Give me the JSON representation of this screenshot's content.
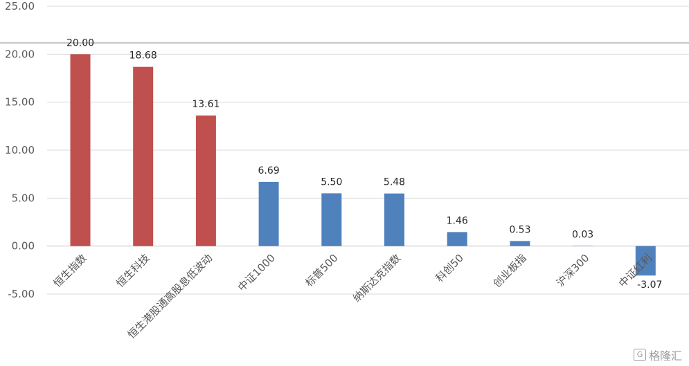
{
  "chart_data": {
    "type": "bar",
    "categories": [
      "恒生指数",
      "恒生科技",
      "恒生港股通高股息低波动",
      "中证1000",
      "标普500",
      "纳斯达克指数",
      "科创50",
      "创业板指",
      "沪深300",
      "中证红利"
    ],
    "values": [
      20.0,
      18.68,
      13.61,
      6.69,
      5.5,
      5.48,
      1.46,
      0.53,
      0.03,
      -3.07
    ],
    "data_labels": [
      "20.00",
      "18.68",
      "13.61",
      "6.69",
      "5.50",
      "5.48",
      "1.46",
      "0.53",
      "0.03",
      "-3.07"
    ],
    "bar_colors": [
      "#c0504d",
      "#c0504d",
      "#c0504d",
      "#4f81bd",
      "#4f81bd",
      "#4f81bd",
      "#4f81bd",
      "#4f81bd",
      "#4f81bd",
      "#4f81bd"
    ],
    "ylim": [
      -5,
      25
    ],
    "yticks": [
      "25.00",
      "20.00",
      "15.00",
      "10.00",
      "5.00",
      "0.00",
      "-5.00"
    ],
    "ytick_values": [
      25,
      20,
      15,
      10,
      5,
      0,
      -5
    ],
    "grid": true,
    "title": "",
    "xlabel": "",
    "ylabel": ""
  },
  "watermark": {
    "icon": "G",
    "text": "格隆汇"
  }
}
